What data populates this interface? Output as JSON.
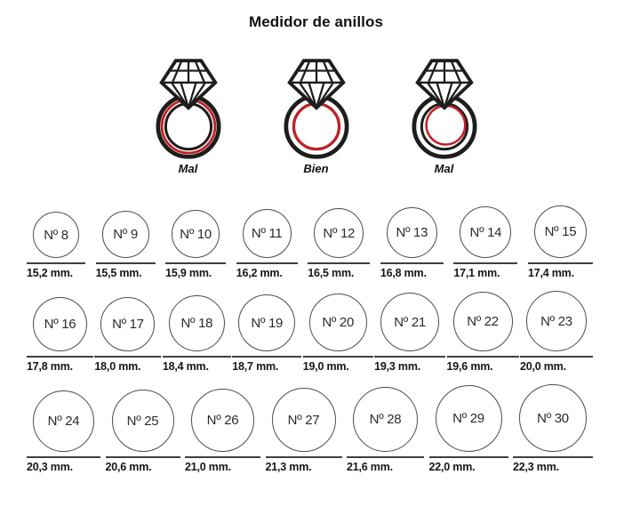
{
  "title": "Medidor de anillos",
  "guide": {
    "rings": [
      {
        "label": "Mal",
        "variant": "too-big"
      },
      {
        "label": "Bien",
        "variant": "correct"
      },
      {
        "label": "Mal",
        "variant": "too-small"
      }
    ]
  },
  "size_chart": {
    "rows": [
      [
        {
          "size": "Nº 8",
          "diameter": "15,2 mm."
        },
        {
          "size": "Nº 9",
          "diameter": "15,5 mm."
        },
        {
          "size": "Nº 10",
          "diameter": "15,9 mm."
        },
        {
          "size": "Nº 11",
          "diameter": "16,2 mm."
        },
        {
          "size": "Nº 12",
          "diameter": "16,5 mm."
        },
        {
          "size": "Nº 13",
          "diameter": "16,8 mm."
        },
        {
          "size": "Nº 14",
          "diameter": "17,1 mm."
        },
        {
          "size": "Nº 15",
          "diameter": "17,4 mm."
        }
      ],
      [
        {
          "size": "Nº 16",
          "diameter": "17,8 mm."
        },
        {
          "size": "Nº 17",
          "diameter": "18,0 mm."
        },
        {
          "size": "Nº 18",
          "diameter": "18,4 mm."
        },
        {
          "size": "Nº 19",
          "diameter": "18,7 mm."
        },
        {
          "size": "Nº 20",
          "diameter": "19,0 mm."
        },
        {
          "size": "Nº 21",
          "diameter": "19,3 mm."
        },
        {
          "size": "Nº 22",
          "diameter": "19,6 mm."
        },
        {
          "size": "Nº 23",
          "diameter": "20,0 mm."
        }
      ],
      [
        {
          "size": "Nº 24",
          "diameter": "20,3 mm."
        },
        {
          "size": "Nº 25",
          "diameter": "20,6 mm."
        },
        {
          "size": "Nº 26",
          "diameter": "21,0 mm."
        },
        {
          "size": "Nº 27",
          "diameter": "21,3 mm."
        },
        {
          "size": "Nº 28",
          "diameter": "21,6 mm."
        },
        {
          "size": "Nº 29",
          "diameter": "22,0 mm."
        },
        {
          "size": "Nº 30",
          "diameter": "22,3 mm."
        }
      ]
    ]
  },
  "colors": {
    "outline_black": "#1d1d1b",
    "accent_red": "#c32026",
    "circle_stroke": "#4c4c4c",
    "text": "#1c1c1c"
  }
}
